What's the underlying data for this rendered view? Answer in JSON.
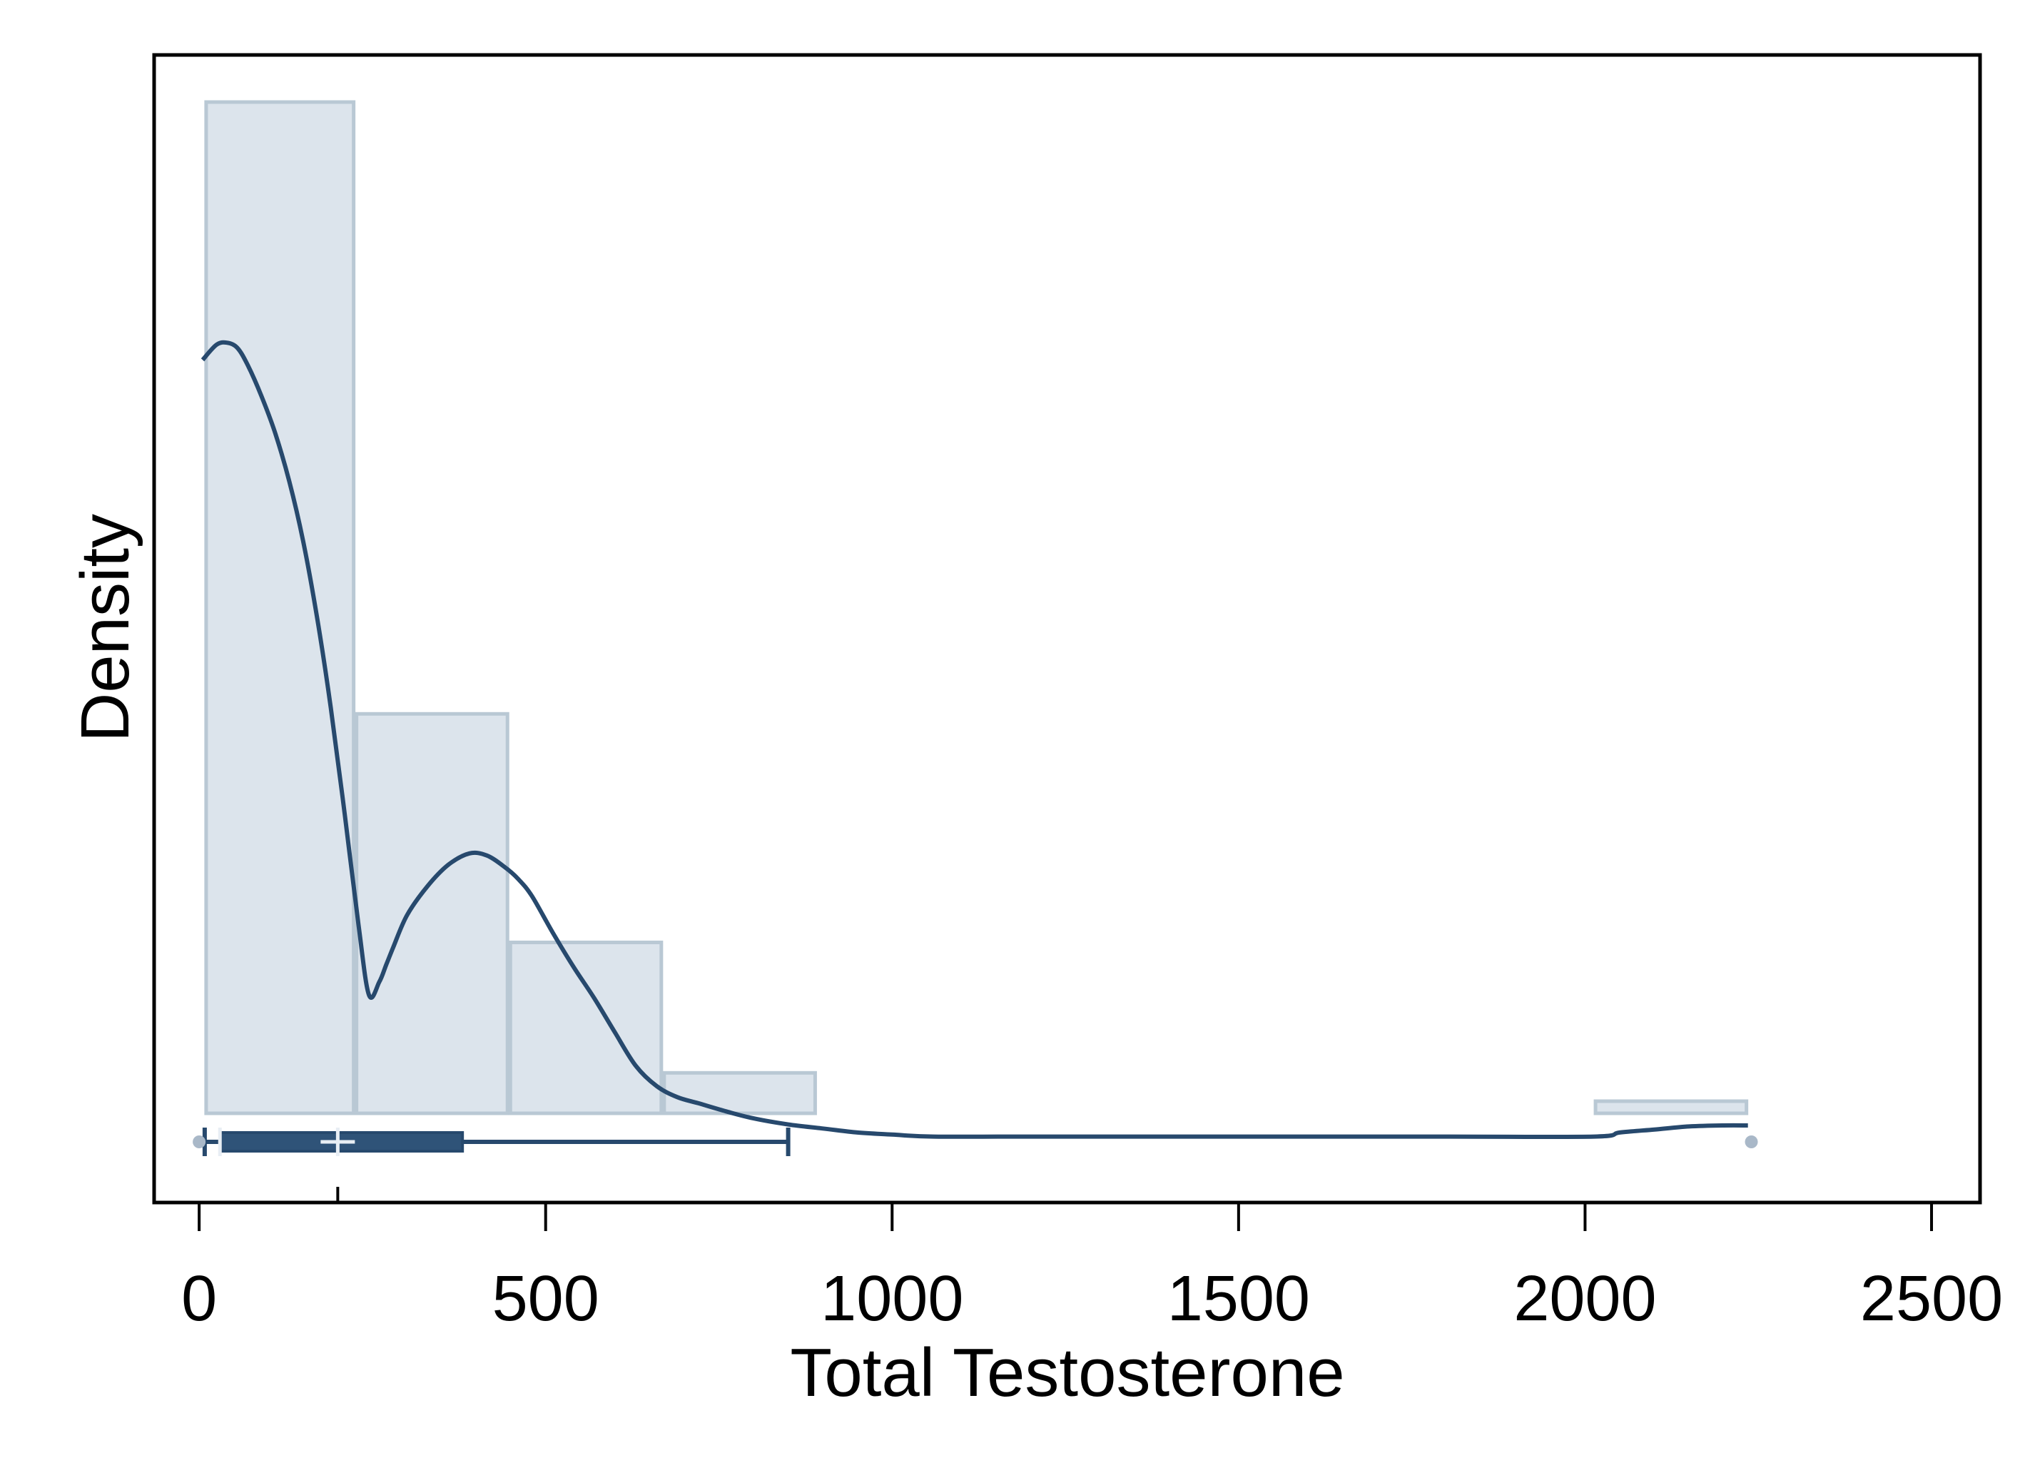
{
  "chart_data": {
    "type": "bar",
    "title": "",
    "xlabel": "Total Testosterone",
    "ylabel": "Density",
    "xlim": [
      -65,
      2570
    ],
    "ylim": [
      0,
      1.0
    ],
    "x_ticks": [
      0,
      500,
      1000,
      1500,
      2000,
      2500
    ],
    "grid": false,
    "legend": "none",
    "histogram": {
      "bins": [
        {
          "x0": 8,
          "x1": 225,
          "density": 1.0
        },
        {
          "x0": 225,
          "x1": 447,
          "density": 0.395
        },
        {
          "x0": 447,
          "x1": 669,
          "density": 0.169
        },
        {
          "x0": 669,
          "x1": 891,
          "density": 0.04
        },
        {
          "x0": 891,
          "x1": 2013,
          "density": 0.0
        },
        {
          "x0": 2013,
          "x1": 2235,
          "density": 0.012
        }
      ]
    },
    "kde": {
      "x": [
        5,
        25,
        40,
        55,
        70,
        90,
        110,
        130,
        150,
        170,
        190,
        210,
        230,
        245,
        260,
        270,
        280,
        300,
        330,
        360,
        390,
        415,
        440,
        460,
        480,
        510,
        540,
        570,
        600,
        630,
        660,
        690,
        720,
        760,
        800,
        850,
        900,
        950,
        1000,
        1060,
        1200,
        1500,
        1800,
        2013,
        2050,
        2100,
        2150,
        2200,
        2235
      ],
      "y": [
        0.745,
        0.76,
        0.762,
        0.757,
        0.74,
        0.709,
        0.672,
        0.625,
        0.566,
        0.491,
        0.401,
        0.296,
        0.186,
        0.117,
        0.13,
        0.147,
        0.164,
        0.196,
        0.225,
        0.246,
        0.257,
        0.255,
        0.244,
        0.232,
        0.215,
        0.179,
        0.145,
        0.114,
        0.08,
        0.047,
        0.027,
        0.016,
        0.01,
        0.002,
        -0.005,
        -0.011,
        -0.015,
        -0.019,
        -0.021,
        -0.023,
        -0.023,
        -0.023,
        -0.023,
        -0.023,
        -0.019,
        -0.016,
        -0.013,
        -0.012,
        -0.012
      ]
    },
    "boxplot": {
      "min": 8,
      "q1": 30,
      "median": 200,
      "mean": 200,
      "q3": 380,
      "max": 850,
      "outliers": [
        0,
        2240
      ]
    },
    "colors": {
      "bar_fill": "#dce4ec",
      "bar_edge": "#b9c8d4",
      "kde_line": "#27496d",
      "box_fill": "#2f5378",
      "outlier": "#a9b8c8",
      "marker": "#e8eef4",
      "axis": "#000000"
    }
  }
}
